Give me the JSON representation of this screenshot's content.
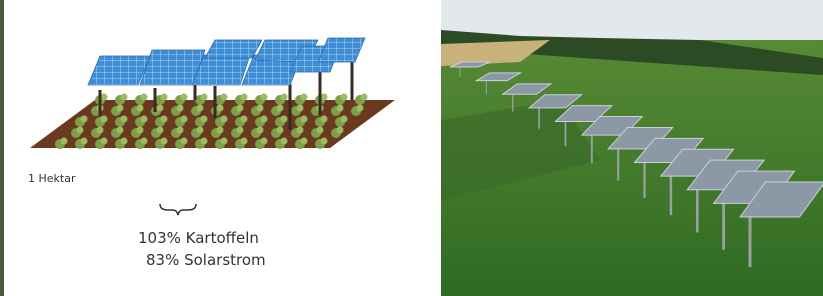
{
  "label": "1 Hektar",
  "results": [
    "103% Kartoffeln",
    "83% Solarstrom"
  ]
}
